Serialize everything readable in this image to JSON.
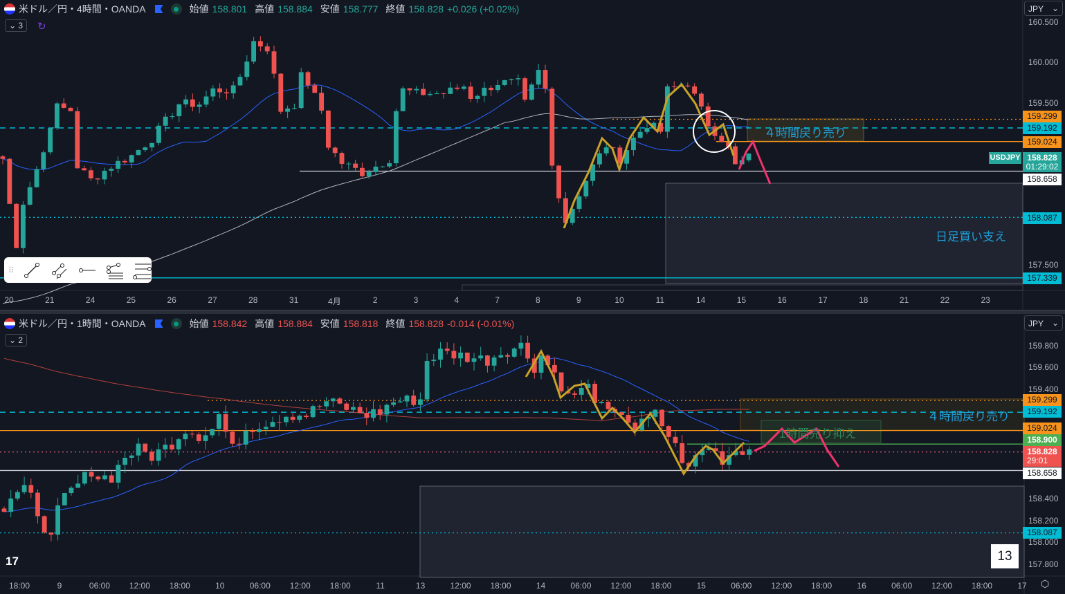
{
  "colors": {
    "up": "#26a69a",
    "down": "#ef5350",
    "orange": "#f7931a",
    "cyan": "#00bcd4",
    "white": "#ffffff",
    "green": "#4caf50",
    "gold": "#c8a228",
    "pink": "#f2326e",
    "ma_fast": "#2962ff",
    "ma_slow_top": "#b2b5be",
    "ma_slow_bottom": "#b2403a"
  },
  "top": {
    "title": "米ドル／円・4時間・OANDA",
    "ohlc": {
      "o_label": "始値",
      "o": "158.801",
      "h_label": "高値",
      "h": "158.884",
      "l_label": "安値",
      "l": "158.777",
      "c_label": "終値",
      "c": "158.828",
      "change": "+0.026 (+0.02%)"
    },
    "indicator_count": "3",
    "currency": "JPY",
    "price_ticks": [
      "160.500",
      "160.000",
      "159.500",
      "157.500"
    ],
    "price_tags": {
      "p1": "159.299",
      "p2": "159.192",
      "p3": "159.024",
      "last": "158.828",
      "countdown": "01:29:02",
      "p4": "158.658",
      "p5": "158.087",
      "p6": "157.339"
    },
    "symbol_tag": "USDJPY",
    "x_labels": [
      "20",
      "21",
      "24",
      "25",
      "26",
      "27",
      "28",
      "31",
      "4月",
      "2",
      "3",
      "4",
      "7",
      "8",
      "9",
      "10",
      "11",
      "14",
      "15",
      "16",
      "17",
      "18",
      "21",
      "22",
      "23"
    ],
    "annotations": {
      "sell_zone": "４時間戻り売り",
      "daily_support": "日足買い支え"
    }
  },
  "bottom": {
    "title": "米ドル／円・1時間・OANDA",
    "ohlc": {
      "o_label": "始値",
      "o": "158.842",
      "h_label": "高値",
      "h": "158.884",
      "l_label": "安値",
      "l": "158.818",
      "c_label": "終値",
      "c": "158.828",
      "change": "-0.014 (-0.01%)"
    },
    "indicator_count": "2",
    "currency": "JPY",
    "price_ticks": [
      "159.800",
      "159.600",
      "159.400",
      "158.400",
      "158.200",
      "158.000",
      "157.800"
    ],
    "price_tags": {
      "p1": "159.299",
      "p2": "159.192",
      "p3": "159.024",
      "p4": "158.900",
      "last": "158.828",
      "countdown": "29:01",
      "p5": "158.658",
      "p6": "158.087"
    },
    "x_labels": [
      "18:00",
      "9",
      "06:00",
      "12:00",
      "18:00",
      "10",
      "06:00",
      "12:00",
      "18:00",
      "11",
      "13",
      "12:00",
      "18:00",
      "14",
      "06:00",
      "12:00",
      "18:00",
      "15",
      "06:00",
      "12:00",
      "18:00",
      "16",
      "06:00",
      "12:00",
      "18:00",
      "17"
    ],
    "annotations": {
      "sell_zone": "４時間戻り売り",
      "hourly_resist": "1時間売り抑え"
    },
    "page_badge": "13"
  },
  "chart_data": [
    {
      "type": "candlestick",
      "symbol": "USDJPY",
      "timeframe": "4h",
      "ylim": [
        157.3,
        160.6
      ],
      "approx_close_keypoints": [
        [
          0,
          158.81
        ],
        [
          2,
          157.7
        ],
        [
          3,
          158.29
        ],
        [
          6,
          158.89
        ],
        [
          7,
          159.24
        ],
        [
          8,
          159.45
        ],
        [
          10,
          159.41
        ],
        [
          11,
          158.72
        ],
        [
          13,
          158.55
        ],
        [
          16,
          158.72
        ],
        [
          19,
          158.85
        ],
        [
          22,
          159.06
        ],
        [
          26,
          159.49
        ],
        [
          29,
          159.49
        ],
        [
          31,
          159.66
        ],
        [
          34,
          159.66
        ],
        [
          35,
          159.83
        ],
        [
          37,
          160.26
        ],
        [
          39,
          160.18
        ],
        [
          40,
          159.83
        ],
        [
          41,
          159.41
        ],
        [
          43,
          159.49
        ],
        [
          44,
          159.83
        ],
        [
          45,
          159.75
        ],
        [
          47,
          159.41
        ],
        [
          48,
          158.98
        ],
        [
          50,
          158.76
        ],
        [
          53,
          158.64
        ],
        [
          55,
          158.72
        ],
        [
          57,
          158.81
        ],
        [
          58,
          159.41
        ],
        [
          59,
          159.66
        ],
        [
          61,
          159.62
        ],
        [
          65,
          159.62
        ],
        [
          68,
          159.71
        ],
        [
          69,
          159.58
        ],
        [
          71,
          159.66
        ],
        [
          73,
          159.75
        ],
        [
          76,
          159.75
        ],
        [
          77,
          159.49
        ],
        [
          79,
          159.88
        ],
        [
          80,
          159.66
        ],
        [
          81,
          158.72
        ],
        [
          82,
          158.38
        ],
        [
          83,
          158.04
        ],
        [
          85,
          158.38
        ],
        [
          87,
          158.72
        ],
        [
          89,
          158.98
        ],
        [
          91,
          158.81
        ],
        [
          93,
          159.06
        ],
        [
          95,
          159.24
        ],
        [
          97,
          159.15
        ],
        [
          98,
          159.66
        ],
        [
          101,
          159.75
        ],
        [
          102,
          159.58
        ],
        [
          104,
          159.24
        ],
        [
          106,
          159.06
        ],
        [
          107,
          158.94
        ],
        [
          108,
          158.72
        ],
        [
          110,
          158.83
        ]
      ],
      "levels": [
        159.299,
        159.192,
        159.024,
        158.658,
        158.087,
        157.339
      ]
    },
    {
      "type": "candlestick",
      "symbol": "USDJPY",
      "timeframe": "1h",
      "ylim": [
        157.7,
        159.9
      ],
      "approx_close_keypoints": [
        [
          0,
          158.28
        ],
        [
          1,
          158.41
        ],
        [
          3,
          158.47
        ],
        [
          4,
          158.41
        ],
        [
          6,
          158.15
        ],
        [
          7,
          158.03
        ],
        [
          8,
          158.28
        ],
        [
          9,
          158.41
        ],
        [
          11,
          158.53
        ],
        [
          13,
          158.66
        ],
        [
          14,
          158.6
        ],
        [
          16,
          158.6
        ],
        [
          18,
          158.79
        ],
        [
          20,
          158.85
        ],
        [
          22,
          158.79
        ],
        [
          25,
          158.91
        ],
        [
          27,
          159.04
        ],
        [
          29,
          158.98
        ],
        [
          31,
          159.04
        ],
        [
          32,
          159.17
        ],
        [
          34,
          158.85
        ],
        [
          36,
          159.04
        ],
        [
          39,
          159.1
        ],
        [
          42,
          159.17
        ],
        [
          45,
          159.17
        ],
        [
          48,
          159.29
        ],
        [
          51,
          159.23
        ],
        [
          54,
          159.17
        ],
        [
          56,
          159.2
        ],
        [
          58,
          159.29
        ],
        [
          62,
          159.31
        ],
        [
          63,
          159.67
        ],
        [
          65,
          159.74
        ],
        [
          68,
          159.71
        ],
        [
          72,
          159.67
        ],
        [
          74,
          159.74
        ],
        [
          77,
          159.8
        ],
        [
          79,
          159.61
        ],
        [
          80,
          159.71
        ],
        [
          82,
          159.55
        ],
        [
          84,
          159.33
        ],
        [
          86,
          159.39
        ],
        [
          87,
          159.42
        ],
        [
          89,
          159.23
        ],
        [
          91,
          159.14
        ],
        [
          92,
          159.2
        ],
        [
          94,
          159.04
        ],
        [
          97,
          159.17
        ],
        [
          99,
          158.98
        ],
        [
          102,
          158.66
        ],
        [
          103,
          158.79
        ],
        [
          105,
          158.88
        ],
        [
          107,
          158.76
        ],
        [
          109,
          158.85
        ],
        [
          111,
          158.85
        ]
      ],
      "levels": [
        159.299,
        159.192,
        159.024,
        158.9,
        158.828,
        158.658,
        158.087
      ]
    }
  ]
}
